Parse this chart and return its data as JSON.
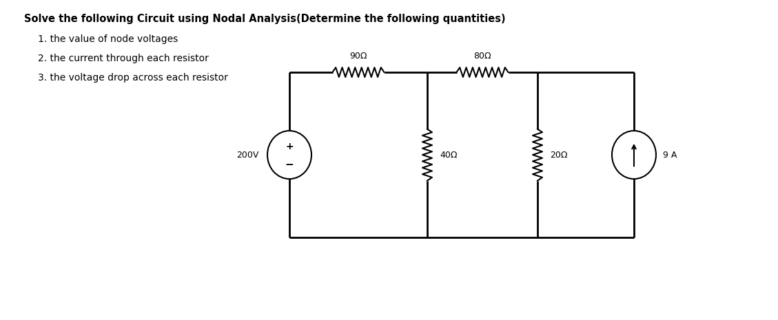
{
  "title": "Solve the following Circuit using Nodal Analysis(Determine the following quantities)",
  "items": [
    "1. the value of node voltages",
    "2. the current through each resistor",
    "3. the voltage drop across each resistor"
  ],
  "bg_color": "#ffffff",
  "circuit": {
    "xl": 4.2,
    "xm1": 6.2,
    "xm2": 7.8,
    "xr": 9.2,
    "yt": 3.6,
    "yb": 1.2,
    "ymid": 2.4,
    "res90_label": "90Ω",
    "res80_label": "80Ω",
    "res40_label": "40Ω",
    "res20_label": "20Ω",
    "vsrc_label": "200V",
    "isrc_label": "9 A",
    "line_color": "#000000",
    "lw": 2.0
  }
}
